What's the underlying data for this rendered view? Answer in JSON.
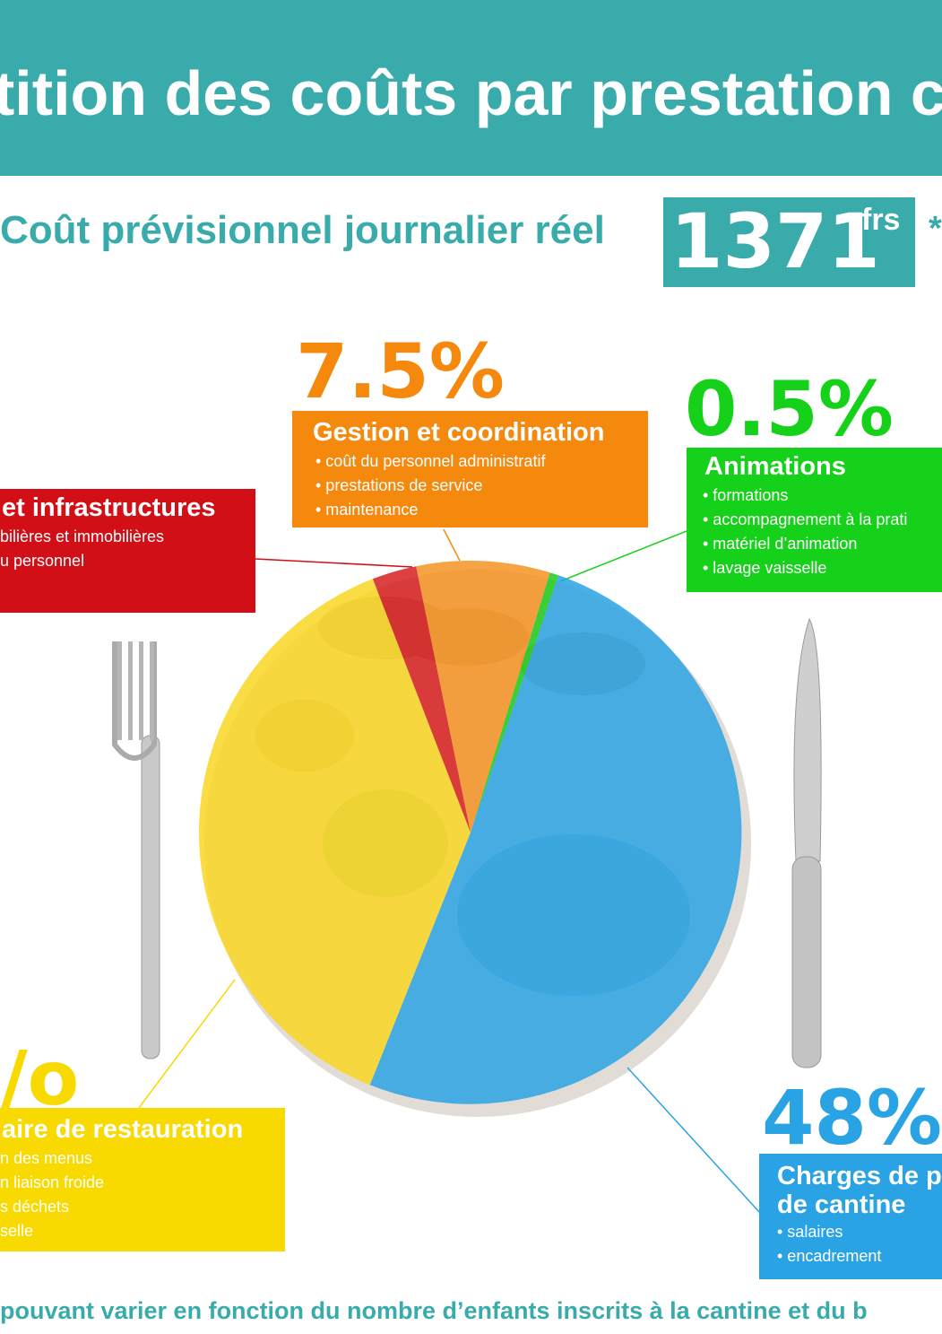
{
  "header": {
    "title": "tition des coûts par prestation cantine e"
  },
  "subtitle": {
    "label": "Coût prévisionnel journalier réel",
    "value": "1371",
    "unit": "frs",
    "asterisk": "*"
  },
  "chart_data": {
    "type": "pie",
    "title": "",
    "slices": [
      {
        "label": "Animations",
        "value": 0.5,
        "color": "#1ccc1c"
      },
      {
        "label": "Charges de p... de cantine",
        "value": 48,
        "color": "#2aa3e4"
      },
      {
        "label": "...aire de restauration",
        "value": 36,
        "color": "#f9d723"
      },
      {
        "label": "... et infrastructures",
        "value": 2.5,
        "color": "#d61f1f"
      },
      {
        "label": "Gestion et coordination",
        "value": 7.5,
        "color": "#f59323"
      }
    ]
  },
  "labels": {
    "gestion": {
      "pct": "7.5%",
      "title": "Gestion et coordination",
      "items": [
        "• coût du personnel administratif",
        "• prestations de service",
        "• maintenance"
      ],
      "color": "#f5890e"
    },
    "animations": {
      "pct": "0.5%",
      "title": "Animations",
      "items": [
        "• formations",
        "• accompagnement à la prati",
        "• matériel d’animation",
        "• lavage vaisselle"
      ],
      "color": "#15d119"
    },
    "infra": {
      "title": "et infrastructures",
      "items": [
        "bilières et immobilières",
        "u personnel"
      ],
      "color": "#d20f17"
    },
    "restauration": {
      "pct": "/o",
      "title": "aire de restauration",
      "items": [
        "n des menus",
        "n liaison froide",
        "s déchets",
        "selle"
      ],
      "color": "#f8d900"
    },
    "charges": {
      "pct": "48%",
      "title_line1": "Charges de p",
      "title_line2": "de cantine",
      "items": [
        "• salaires",
        "• encadrement"
      ],
      "color": "#2aa3e4"
    }
  },
  "footer": {
    "text": "pouvant varier en fonction du nombre d’enfants inscrits à la cantine et du  b"
  }
}
